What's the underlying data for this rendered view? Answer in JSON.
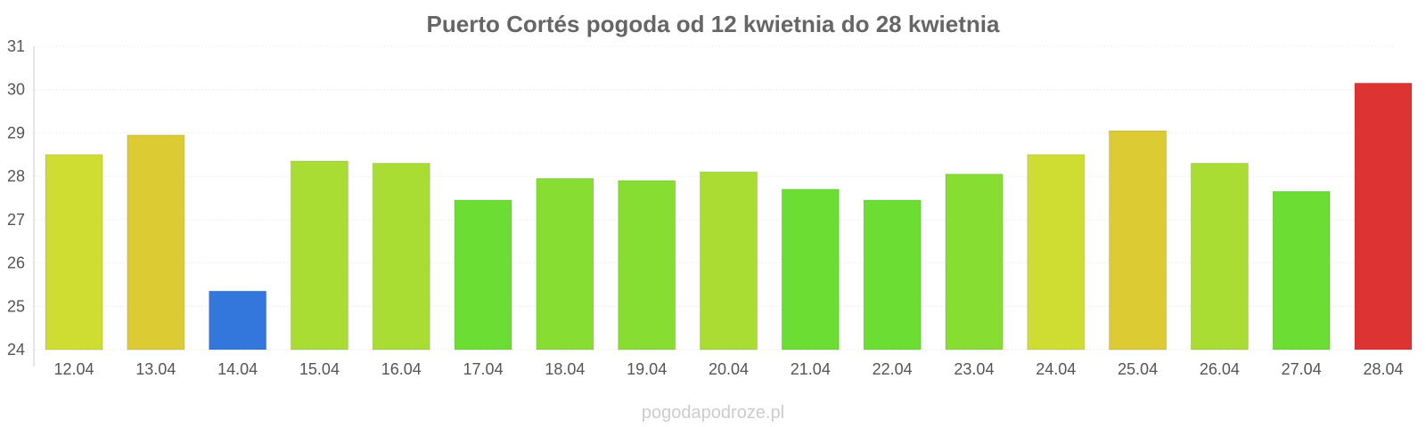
{
  "chart_data": {
    "type": "bar",
    "title": "Puerto Cortés pogoda od 12 kwietnia do 28 kwietnia",
    "categories": [
      "12.04",
      "13.04",
      "14.04",
      "15.04",
      "16.04",
      "17.04",
      "18.04",
      "19.04",
      "20.04",
      "21.04",
      "22.04",
      "23.04",
      "24.04",
      "25.04",
      "26.04",
      "27.04",
      "28.04"
    ],
    "values": [
      28.5,
      28.95,
      25.35,
      28.35,
      28.3,
      27.45,
      27.95,
      27.9,
      28.1,
      27.7,
      27.45,
      28.05,
      28.5,
      29.05,
      28.3,
      27.65,
      30.15
    ],
    "colors": [
      "#cfdd33",
      "#dccb33",
      "#3377dd",
      "#aadd33",
      "#aadd33",
      "#6cdd33",
      "#88dd33",
      "#88dd33",
      "#aadd33",
      "#6cdd33",
      "#6cdd33",
      "#88dd33",
      "#cfdd33",
      "#dccb33",
      "#aadd33",
      "#6cdd33",
      "#dd3333"
    ],
    "xlabel": "",
    "ylabel": "",
    "ylim": [
      24,
      31
    ],
    "yticks": [
      "24",
      "25",
      "26",
      "27",
      "28",
      "29",
      "30",
      "31"
    ],
    "grid": true,
    "legend": "none"
  },
  "watermark": "pogodapodroze.pl"
}
